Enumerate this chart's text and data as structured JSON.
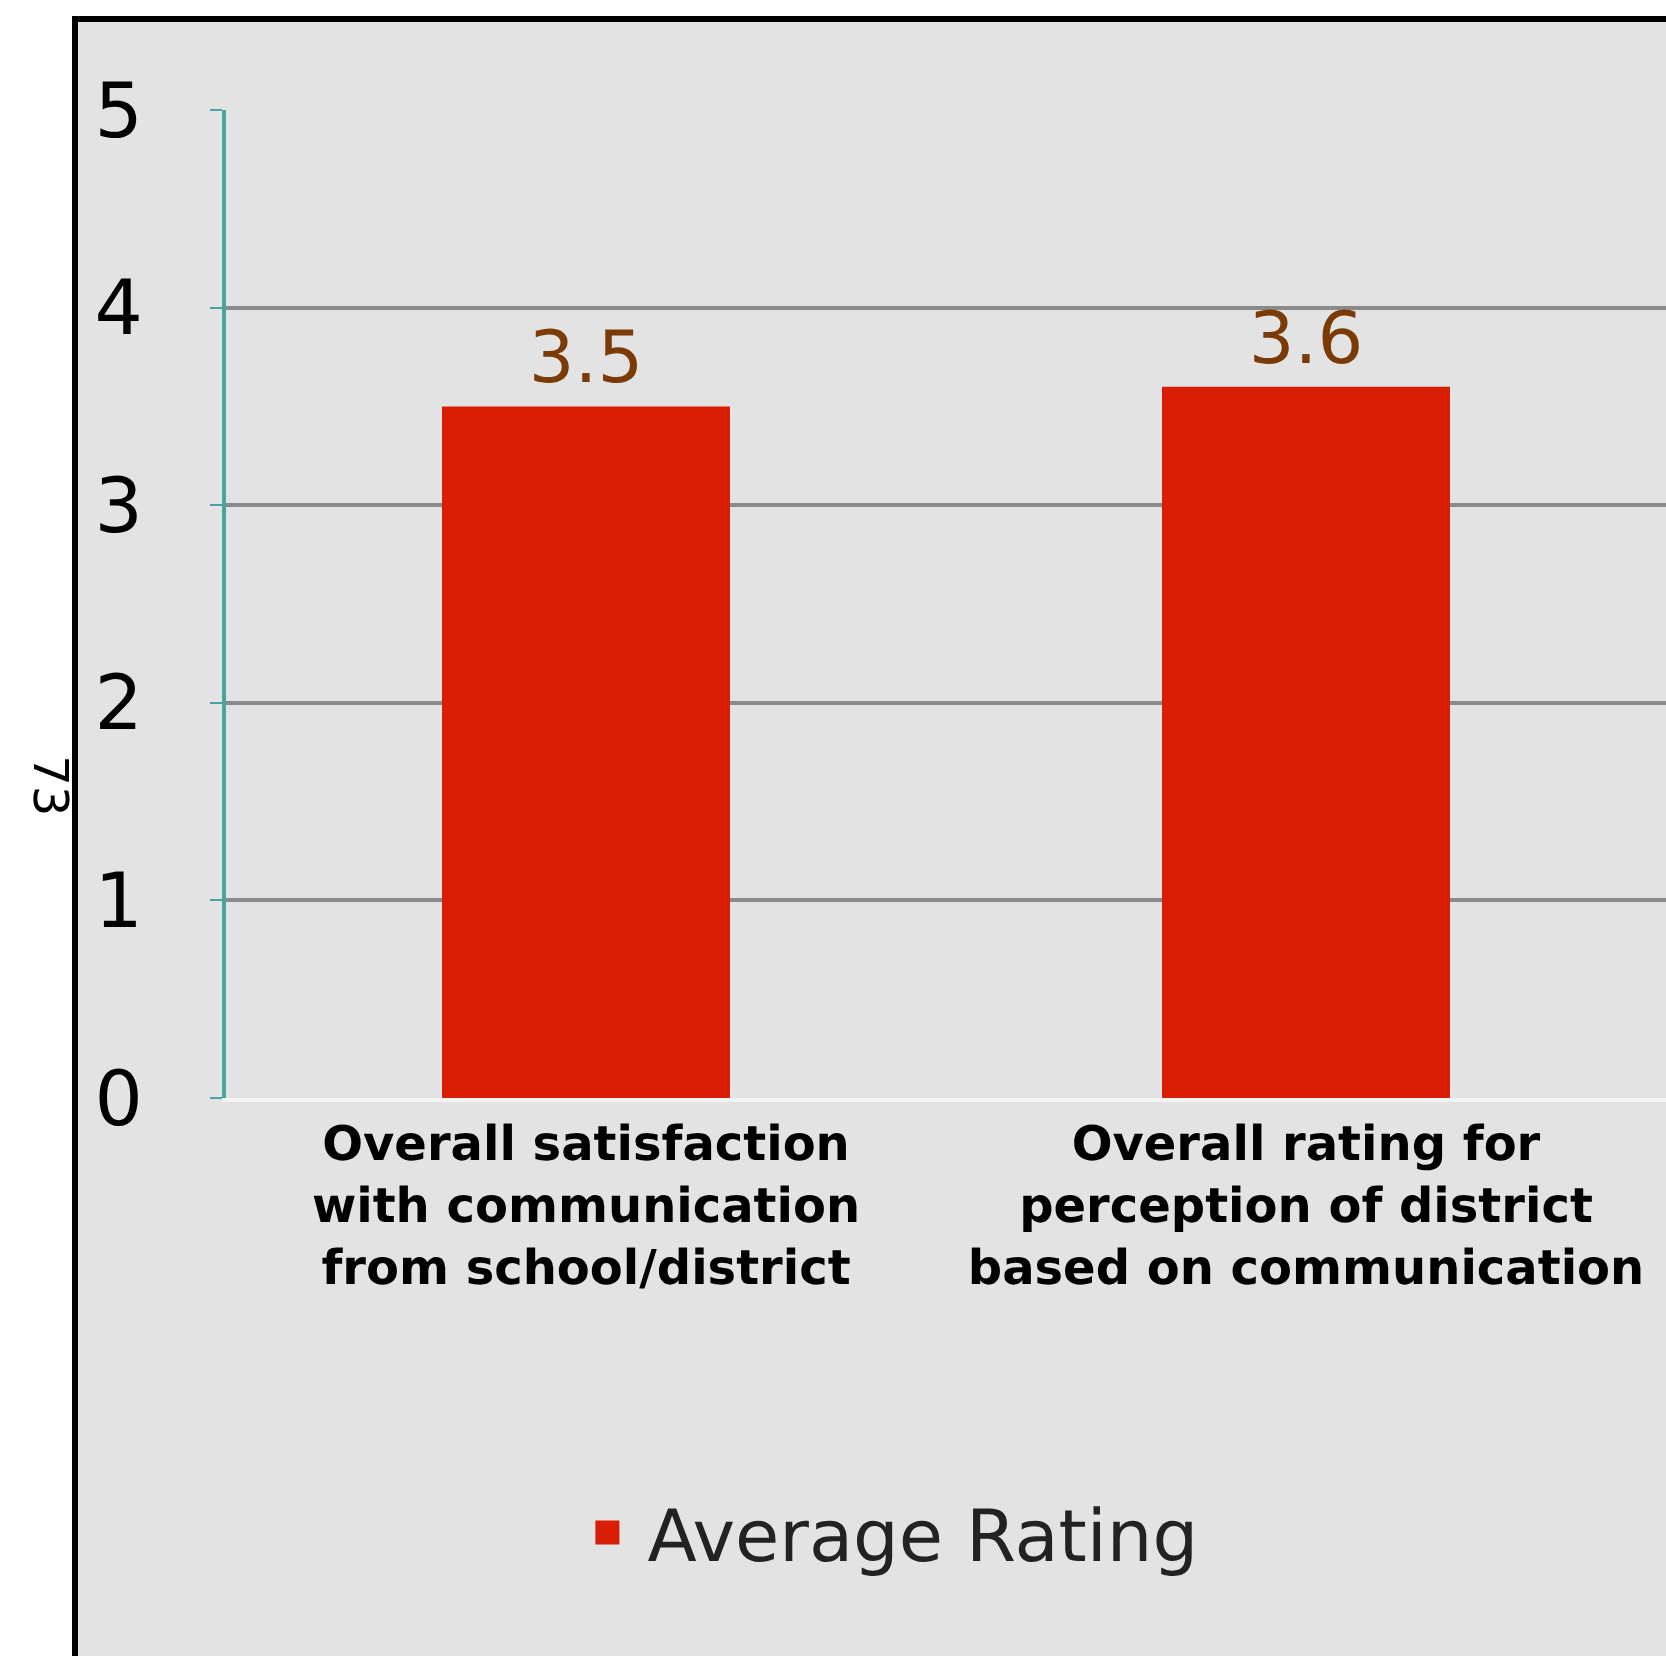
{
  "chart_data": {
    "type": "bar",
    "categories": [
      "Overall satisfaction with communication from school/district",
      "Overall rating for perception of district based on communication"
    ],
    "series": [
      {
        "name": "Average Rating",
        "color": "#d81e05",
        "values": [
          3.5,
          3.6
        ]
      }
    ],
    "ylim": [
      0,
      5
    ],
    "yticks": [
      0,
      1,
      2,
      3,
      4,
      5
    ],
    "grid": "y",
    "legend": "bottom",
    "data_labels": true,
    "annotations": [
      "73"
    ]
  }
}
